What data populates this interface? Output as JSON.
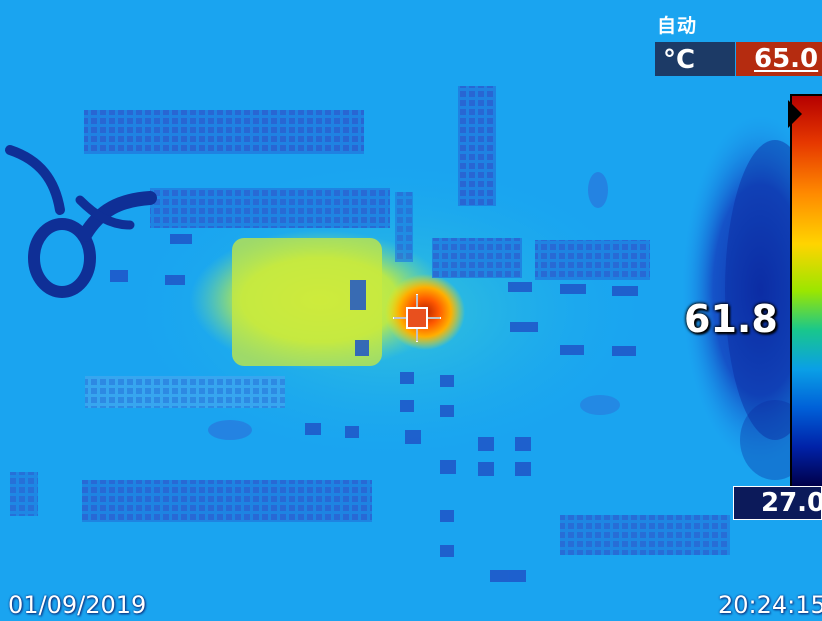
{
  "camera": {
    "mode": "自动",
    "unit": "°C",
    "range_max": "65.0",
    "range_min": "27.0",
    "spot_value": "61.8",
    "date": "01/09/2019",
    "time": "20:24:15"
  },
  "palette": {
    "hot": "#e63800",
    "warm": "#ffd400",
    "mid": "#19c78c",
    "cool": "#0aa0e6",
    "cold": "#00004a"
  }
}
